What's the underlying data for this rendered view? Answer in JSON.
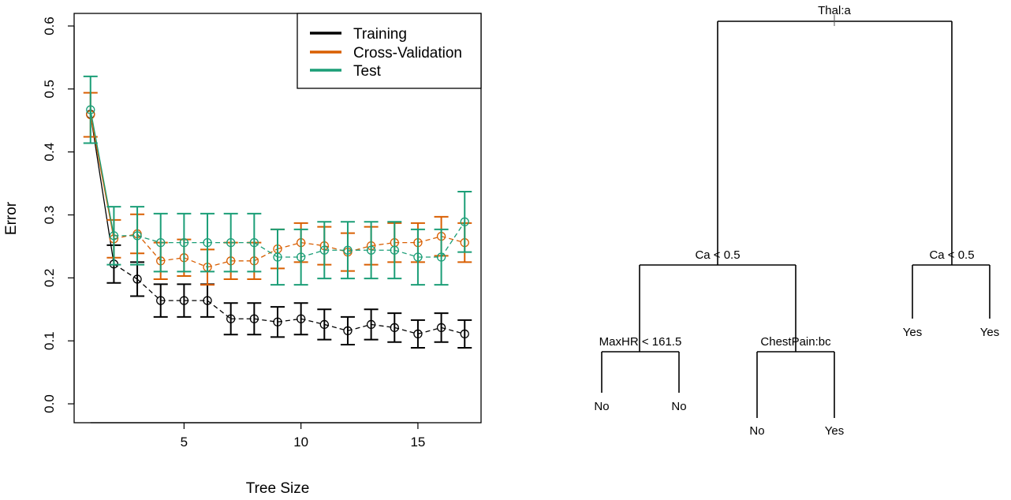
{
  "chart_data": [
    {
      "type": "line",
      "title": "",
      "xlabel": "Tree Size",
      "ylabel": "Error",
      "xlim": [
        0.3,
        17.7
      ],
      "ylim": [
        -0.03,
        0.62
      ],
      "xticks": [
        5,
        10,
        15
      ],
      "yticks": [
        0.0,
        0.1,
        0.2,
        0.3,
        0.4,
        0.5,
        0.6
      ],
      "ytick_labels": [
        "0.0",
        "0.1",
        "0.2",
        "0.3",
        "0.4",
        "0.5",
        "0.6"
      ],
      "grid": false,
      "legend_position": "top-right",
      "x": [
        1,
        2,
        3,
        4,
        5,
        6,
        7,
        8,
        9,
        10,
        11,
        12,
        13,
        14,
        15,
        16,
        17
      ],
      "series": [
        {
          "name": "Training",
          "color": "#000000",
          "values": [
            0.46,
            0.222,
            0.198,
            0.164,
            0.164,
            0.164,
            0.135,
            0.135,
            0.13,
            0.135,
            0.126,
            0.116,
            0.126,
            0.121,
            0.111,
            0.121,
            0.111
          ],
          "err": [
            0.0,
            0.03,
            0.027,
            0.026,
            0.026,
            0.026,
            0.025,
            0.025,
            0.024,
            0.025,
            0.024,
            0.022,
            0.024,
            0.023,
            0.022,
            0.023,
            0.022
          ]
        },
        {
          "name": "Cross-Validation",
          "color": "#d95f02",
          "values": [
            0.459,
            0.262,
            0.27,
            0.227,
            0.232,
            0.217,
            0.227,
            0.227,
            0.246,
            0.256,
            0.251,
            0.241,
            0.251,
            0.256,
            0.256,
            0.266,
            0.256
          ],
          "err": [
            0.035,
            0.03,
            0.031,
            0.029,
            0.029,
            0.028,
            0.029,
            0.029,
            0.031,
            0.031,
            0.03,
            0.03,
            0.03,
            0.031,
            0.031,
            0.031,
            0.031
          ]
        },
        {
          "name": "Test",
          "color": "#1b9e77",
          "values": [
            0.467,
            0.267,
            0.267,
            0.256,
            0.256,
            0.256,
            0.256,
            0.256,
            0.233,
            0.233,
            0.244,
            0.244,
            0.244,
            0.244,
            0.233,
            0.233,
            0.289
          ],
          "err": [
            0.053,
            0.046,
            0.046,
            0.046,
            0.046,
            0.046,
            0.046,
            0.046,
            0.044,
            0.044,
            0.045,
            0.045,
            0.045,
            0.045,
            0.044,
            0.044,
            0.048
          ]
        }
      ]
    },
    {
      "type": "tree",
      "nodes": [
        {
          "id": "root",
          "label": "Thal:a"
        },
        {
          "id": "L",
          "label": "Ca < 0.5",
          "parent": "root"
        },
        {
          "id": "R",
          "label": "Ca < 0.5",
          "parent": "root"
        },
        {
          "id": "LL",
          "label": "MaxHR < 161.5",
          "parent": "L"
        },
        {
          "id": "LR",
          "label": "ChestPain:bc",
          "parent": "L"
        },
        {
          "id": "RL",
          "label": "Yes",
          "parent": "R"
        },
        {
          "id": "RR",
          "label": "Yes",
          "parent": "R"
        },
        {
          "id": "LLL",
          "label": "No",
          "parent": "LL"
        },
        {
          "id": "LLR",
          "label": "No",
          "parent": "LL"
        },
        {
          "id": "LRL",
          "label": "No",
          "parent": "LR"
        },
        {
          "id": "LRR",
          "label": "Yes",
          "parent": "LR"
        }
      ]
    }
  ]
}
